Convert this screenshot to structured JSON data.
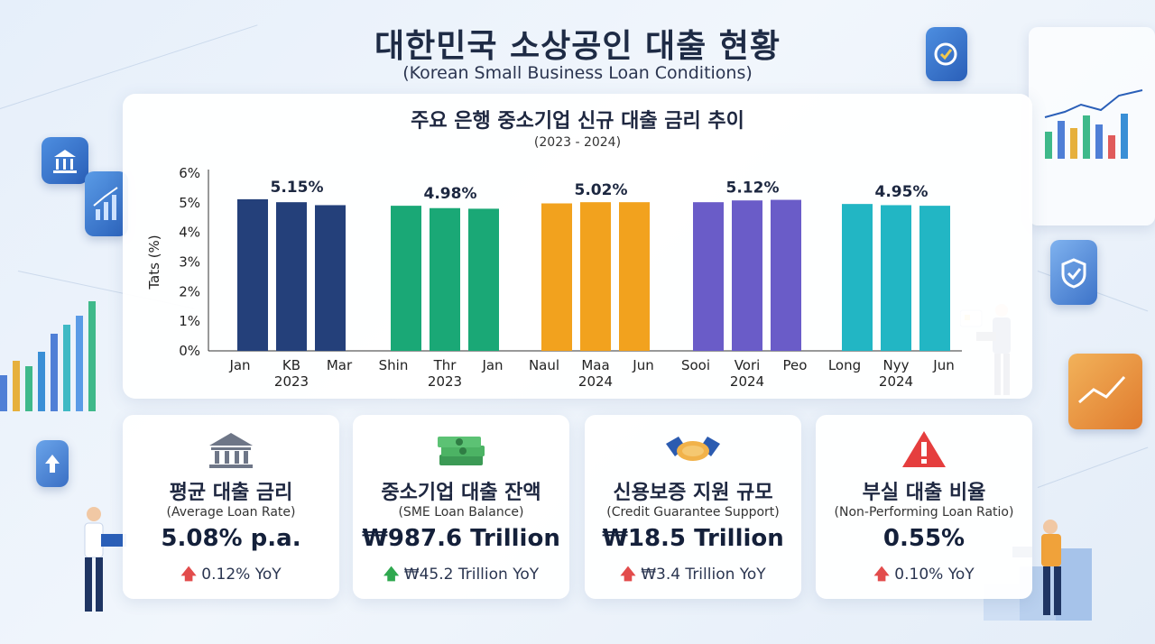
{
  "header": {
    "title": "대한민국 소상공인 대출 현황",
    "subtitle": "(Korean Small Business Loan Conditions)"
  },
  "chart": {
    "title": "주요 은행 중소기업 신규 대출 금리 추이",
    "subtitle": "(2023 - 2024)"
  },
  "chart_data": {
    "type": "bar",
    "title": "주요 은행 중소기업 신규 대출 금리 추이",
    "subtitle": "(2023 - 2024)",
    "ylabel": "Tats (%)",
    "ylim": [
      0,
      6
    ],
    "yticks": [
      "0%",
      "1%",
      "2%",
      "3%",
      "4%",
      "5%",
      "6%"
    ],
    "grid": false,
    "groups": [
      {
        "label": "5.15%",
        "year": "2023",
        "color": "#24407a",
        "categories": [
          "Jan",
          "KB",
          "Mar"
        ],
        "values": [
          5.12,
          5.02,
          4.92
        ]
      },
      {
        "label": "4.98%",
        "year": "2023",
        "color": "#1aa876",
        "categories": [
          "Shin",
          "Thr",
          "Jan"
        ],
        "values": [
          4.9,
          4.82,
          4.8
        ]
      },
      {
        "label": "5.02%",
        "year": "2024",
        "color": "#f2a21e",
        "categories": [
          "Naul",
          "Maa",
          "Jun"
        ],
        "values": [
          4.98,
          5.02,
          5.02
        ]
      },
      {
        "label": "5.12%",
        "year": "2024",
        "color": "#6a5cc8",
        "categories": [
          "Sooi",
          "Vori",
          "Peo"
        ],
        "values": [
          5.02,
          5.08,
          5.1
        ]
      },
      {
        "label": "4.95%",
        "year": "2024",
        "color": "#22b6c4",
        "categories": [
          "Long",
          "Nyy",
          "Jun"
        ],
        "values": [
          4.96,
          4.92,
          4.9
        ]
      }
    ]
  },
  "kpis": [
    {
      "icon": "bank-icon",
      "title": "평균 대출 금리",
      "sub": "(Average Loan Rate)",
      "value": "5.08% p.a.",
      "arrow": "🡅",
      "change": "0.12% YoY",
      "trend": "up-red"
    },
    {
      "icon": "money-stack-icon",
      "title": "중소기업 대출 잔액",
      "sub": "(SME Loan Balance)",
      "value": "₩987.6 Trillion",
      "arrow": "🡅",
      "change": "₩45.2 Trillion YoY",
      "trend": "up-green"
    },
    {
      "icon": "handshake-icon",
      "title": "신용보증 지원 규모",
      "sub": "(Credit Guarantee Support)",
      "value": "₩18.5 Trillion",
      "arrow": "🡅",
      "change": "₩3.4 Trillion YoY",
      "trend": "up-red"
    },
    {
      "icon": "warning-icon",
      "title": "부실 대출 비율",
      "sub": "(Non-Performing Loan Ratio)",
      "value": "0.55%",
      "arrow": "🡅",
      "change": "0.10% YoY",
      "trend": "up-red"
    }
  ]
}
